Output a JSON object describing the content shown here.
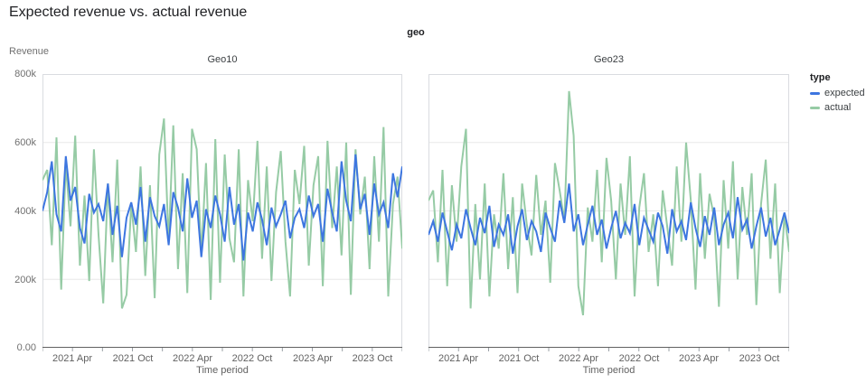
{
  "title": "Expected revenue vs. actual revenue",
  "facet_field_label": "geo",
  "y_axis": {
    "title": "Revenue",
    "tick_labels": [
      "800k",
      "600k",
      "400k",
      "200k",
      "0.00"
    ]
  },
  "x_axis": {
    "title": "Time period",
    "tick_labels": [
      "2021 Apr",
      "2021 Oct",
      "2022 Apr",
      "2022 Oct",
      "2023 Apr",
      "2023 Oct"
    ]
  },
  "legend": {
    "title": "type",
    "items": [
      {
        "label": "expected",
        "color": "#3d76e0"
      },
      {
        "label": "actual",
        "color": "#96cba5"
      }
    ]
  },
  "colors": {
    "grid": "#e8e8e8",
    "plot_border": "#dadce0",
    "domain_line": "#616161",
    "tick": "#9aa0a6"
  },
  "chart_data": [
    {
      "type": "line",
      "facet": "Geo10",
      "xlabel": "Time period",
      "ylabel": "Revenue",
      "x_domain": [
        "2021-01",
        "2024-01"
      ],
      "x_interval": "biweekly",
      "x_tick_labels": [
        "2021 Apr",
        "2021 Oct",
        "2022 Apr",
        "2022 Oct",
        "2023 Apr",
        "2023 Oct"
      ],
      "ylim_thousands": [
        0,
        800
      ],
      "grid": "horizontal-only",
      "legend_position": "right",
      "series": [
        {
          "name": "expected",
          "color": "#3d76e0",
          "values_thousands": [
            400,
            455,
            545,
            390,
            340,
            560,
            430,
            470,
            350,
            305,
            450,
            395,
            420,
            370,
            480,
            330,
            415,
            265,
            380,
            425,
            360,
            470,
            310,
            440,
            385,
            355,
            420,
            300,
            455,
            410,
            340,
            495,
            380,
            430,
            265,
            405,
            350,
            445,
            390,
            310,
            470,
            360,
            420,
            255,
            395,
            340,
            425,
            375,
            300,
            410,
            355,
            390,
            430,
            320,
            380,
            405,
            350,
            445,
            385,
            420,
            310,
            465,
            395,
            340,
            545,
            430,
            370,
            565,
            405,
            450,
            330,
            480,
            390,
            425,
            350,
            510,
            440,
            530
          ]
        },
        {
          "name": "actual",
          "color": "#96cba5",
          "values_thousands": [
            490,
            520,
            300,
            615,
            170,
            540,
            355,
            620,
            240,
            445,
            195,
            580,
            330,
            130,
            480,
            250,
            550,
            115,
            155,
            420,
            280,
            530,
            210,
            475,
            145,
            565,
            670,
            305,
            650,
            230,
            510,
            160,
            640,
            580,
            270,
            540,
            140,
            610,
            190,
            565,
            320,
            250,
            580,
            150,
            490,
            370,
            605,
            260,
            530,
            195,
            455,
            575,
            310,
            150,
            520,
            420,
            590,
            240,
            475,
            560,
            180,
            605,
            350,
            530,
            270,
            600,
            155,
            580,
            390,
            500,
            230,
            560,
            310,
            645,
            150,
            420,
            500,
            290
          ]
        }
      ]
    },
    {
      "type": "line",
      "facet": "Geo23",
      "xlabel": "Time period",
      "ylabel": "Revenue",
      "x_domain": [
        "2021-01",
        "2024-01"
      ],
      "x_interval": "biweekly",
      "x_tick_labels": [
        "2021 Apr",
        "2021 Oct",
        "2022 Apr",
        "2022 Oct",
        "2023 Apr",
        "2023 Oct"
      ],
      "ylim_thousands": [
        0,
        800
      ],
      "grid": "horizontal-only",
      "legend_position": "right",
      "series": [
        {
          "name": "expected",
          "color": "#3d76e0",
          "values_thousands": [
            330,
            370,
            310,
            395,
            340,
            285,
            360,
            320,
            405,
            350,
            300,
            380,
            335,
            415,
            295,
            360,
            330,
            390,
            275,
            355,
            405,
            315,
            370,
            340,
            280,
            395,
            350,
            310,
            430,
            365,
            480,
            340,
            390,
            300,
            360,
            415,
            330,
            375,
            290,
            350,
            400,
            320,
            365,
            335,
            420,
            300,
            380,
            345,
            310,
            395,
            355,
            275,
            405,
            340,
            370,
            315,
            425,
            350,
            295,
            385,
            330,
            410,
            300,
            360,
            395,
            320,
            440,
            345,
            375,
            290,
            355,
            410,
            325,
            380,
            300,
            345,
            395,
            335
          ]
        },
        {
          "name": "actual",
          "color": "#96cba5",
          "values_thousands": [
            430,
            460,
            250,
            520,
            180,
            475,
            310,
            530,
            640,
            115,
            420,
            200,
            480,
            150,
            390,
            290,
            510,
            230,
            440,
            160,
            480,
            360,
            270,
            505,
            330,
            430,
            190,
            540,
            460,
            370,
            750,
            620,
            180,
            95,
            410,
            310,
            520,
            250,
            555,
            430,
            200,
            480,
            330,
            560,
            150,
            410,
            510,
            280,
            390,
            180,
            460,
            350,
            240,
            530,
            310,
            600,
            430,
            170,
            510,
            260,
            450,
            380,
            120,
            490,
            290,
            545,
            200,
            470,
            330,
            510,
            125,
            420,
            550,
            260,
            480,
            160,
            390,
            280
          ]
        }
      ]
    }
  ]
}
